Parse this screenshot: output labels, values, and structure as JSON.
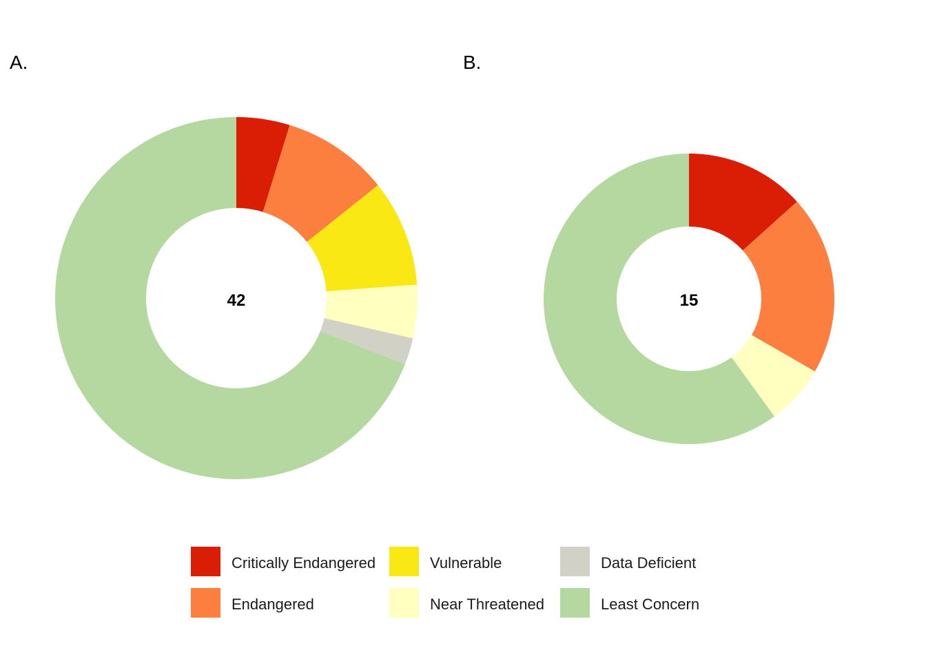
{
  "colors": {
    "Critically Endangered": "#D91E05",
    "Endangered": "#FC7F3F",
    "Vulnerable": "#F9E814",
    "Near Threatened": "#FFFFC0",
    "Data Deficient": "#D1D1C6",
    "Least Concern": "#B4D89F"
  },
  "chart_data": [
    {
      "type": "pie",
      "panel_label": "A.",
      "center_label": "42",
      "categories": [
        "Critically Endangered",
        "Endangered",
        "Vulnerable",
        "Near Threatened",
        "Data Deficient",
        "Least Concern"
      ],
      "values": [
        2,
        4,
        4,
        2,
        1,
        29
      ]
    },
    {
      "type": "pie",
      "panel_label": "B.",
      "center_label": "15",
      "categories": [
        "Critically Endangered",
        "Endangered",
        "Vulnerable",
        "Near Threatened",
        "Data Deficient",
        "Least Concern"
      ],
      "values": [
        2,
        3,
        0,
        1,
        0,
        9
      ]
    }
  ],
  "legend": {
    "items": [
      "Critically Endangered",
      "Endangered",
      "Vulnerable",
      "Near Threatened",
      "Data Deficient",
      "Least Concern"
    ]
  }
}
